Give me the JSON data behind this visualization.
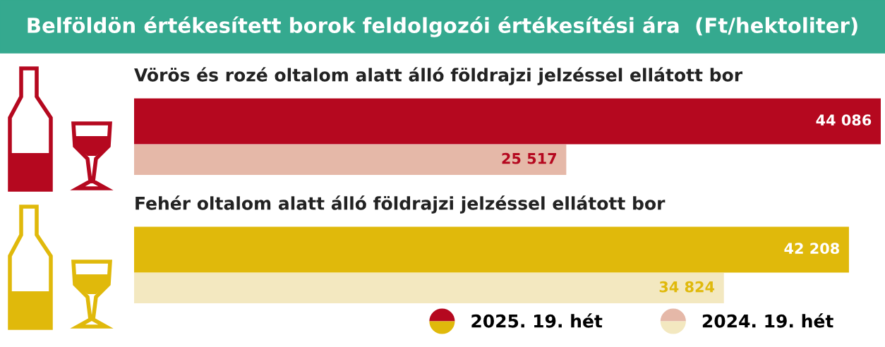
{
  "chart_data": {
    "type": "bar",
    "orientation": "horizontal",
    "title": "Belföldön értékesített borok feldolgozói értékesítési ára  (Ft/hektoliter)",
    "categories": [
      "Vörös és rozé oltalom alatt álló földrajzi jelzéssel ellátott bor",
      "Fehér oltalom alatt álló földrajzi jelzéssel ellátott bor"
    ],
    "series": [
      {
        "name": "2025. 19. hét",
        "colors": [
          "#b5081f",
          "#e0b90b"
        ],
        "values": [
          44086,
          42208
        ],
        "value_labels": [
          "44 086",
          "42 208"
        ]
      },
      {
        "name": "2024. 19. hét",
        "colors": [
          "#e5b8a8",
          "#f3e8c0"
        ],
        "values": [
          25517,
          34824
        ],
        "value_labels": [
          "25 517",
          "34 824"
        ]
      }
    ],
    "legend": "bottom right"
  }
}
